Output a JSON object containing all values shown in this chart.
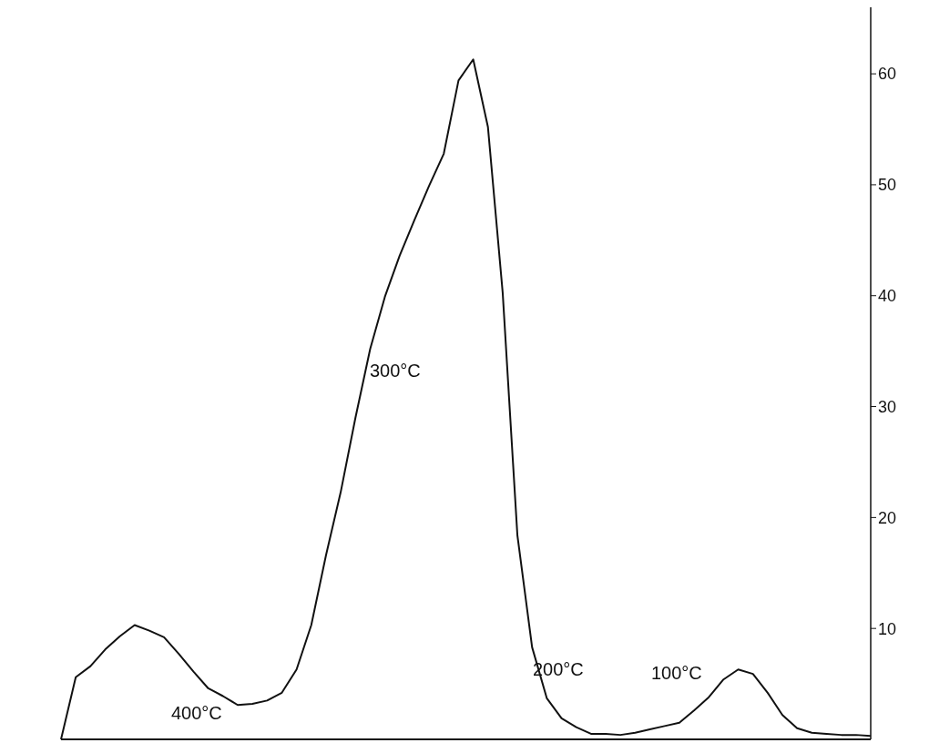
{
  "chart_data": {
    "type": "line",
    "categories": [
      null,
      null,
      null,
      null,
      null,
      null,
      null,
      null,
      null,
      null,
      null,
      null,
      null,
      null,
      null,
      null,
      null,
      null,
      null,
      null,
      null,
      null,
      null,
      null,
      null,
      null,
      null,
      null,
      null,
      null,
      null,
      null,
      null,
      null,
      null,
      null,
      null,
      null,
      null,
      null,
      null,
      null,
      null,
      null,
      null,
      null,
      null,
      null,
      null,
      null,
      null,
      null,
      null,
      null,
      null,
      null
    ],
    "series": [
      {
        "color": "#111111",
        "values": [
          0,
          5.6,
          6.6,
          8.1,
          9.3,
          10.3,
          9.8,
          9.2,
          7.7,
          6.1,
          4.6,
          3.9,
          3.1,
          3.2,
          3.5,
          4.2,
          6.3,
          10.3,
          16.6,
          22.3,
          29,
          35.2,
          39.9,
          43.6,
          46.8,
          49.9,
          52.8,
          59.4,
          61.3,
          55.2,
          40.3,
          18.4,
          8.3,
          3.7,
          1.9,
          1.1,
          0.5,
          0.5,
          0.4,
          0.6,
          0.9,
          1.2,
          1.5,
          2.6,
          3.8,
          5.4,
          6.3,
          5.9,
          4.2,
          2.2,
          1,
          0.6,
          0.5,
          0.4,
          0.4,
          0.3
        ]
      }
    ],
    "ylim": [
      0,
      66
    ],
    "yticks": [
      10,
      20,
      30,
      40,
      50,
      60
    ],
    "tick_labels": "y",
    "marker": "none",
    "line_style": "solid",
    "annotations": [
      "400°C",
      "300°C",
      "200°C",
      "100°C"
    ]
  }
}
